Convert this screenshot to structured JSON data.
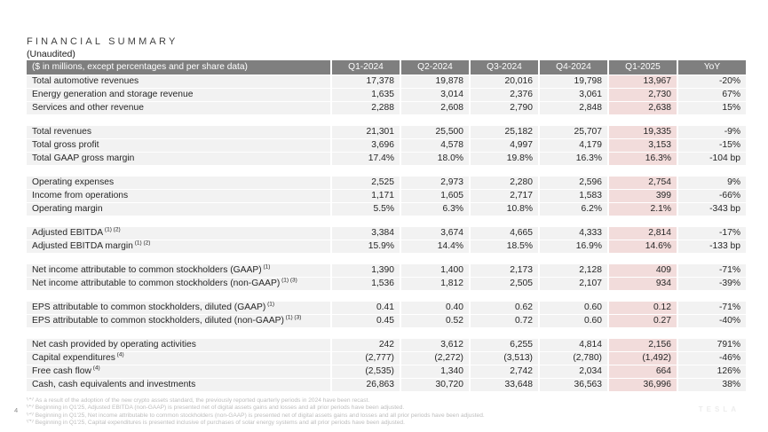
{
  "title": "FINANCIAL SUMMARY",
  "subtitle": "(Unaudited)",
  "page_number": "4",
  "watermark": "TESLA",
  "colors": {
    "header_bg": "#7f7f7f",
    "row_bg": "#f2f2f2",
    "highlight": "#f2dcdb",
    "header_text": "#ffffff",
    "footnote_text": "#bdbdbd"
  },
  "table": {
    "columns": [
      "($ in millions, except percentages and per share data)",
      "Q1-2024",
      "Q2-2024",
      "Q3-2024",
      "Q4-2024",
      "Q1-2025",
      "YoY"
    ],
    "highlight_column": "Q1-2025",
    "groups": [
      [
        {
          "label": "Total automotive revenues",
          "sup": "",
          "values": [
            "17,378",
            "19,878",
            "20,016",
            "19,798",
            "13,967",
            "-20%"
          ]
        },
        {
          "label": "Energy generation and storage revenue",
          "sup": "",
          "values": [
            "1,635",
            "3,014",
            "2,376",
            "3,061",
            "2,730",
            "67%"
          ]
        },
        {
          "label": "Services and other revenue",
          "sup": "",
          "values": [
            "2,288",
            "2,608",
            "2,790",
            "2,848",
            "2,638",
            "15%"
          ]
        }
      ],
      [
        {
          "label": "Total revenues",
          "sup": "",
          "values": [
            "21,301",
            "25,500",
            "25,182",
            "25,707",
            "19,335",
            "-9%"
          ]
        },
        {
          "label": "Total gross profit",
          "sup": "",
          "values": [
            "3,696",
            "4,578",
            "4,997",
            "4,179",
            "3,153",
            "-15%"
          ]
        },
        {
          "label": "Total GAAP gross margin",
          "sup": "",
          "values": [
            "17.4%",
            "18.0%",
            "19.8%",
            "16.3%",
            "16.3%",
            "-104 bp"
          ]
        }
      ],
      [
        {
          "label": "Operating expenses",
          "sup": "",
          "values": [
            "2,525",
            "2,973",
            "2,280",
            "2,596",
            "2,754",
            "9%"
          ]
        },
        {
          "label": "Income from operations",
          "sup": "",
          "values": [
            "1,171",
            "1,605",
            "2,717",
            "1,583",
            "399",
            "-66%"
          ]
        },
        {
          "label": "Operating margin",
          "sup": "",
          "values": [
            "5.5%",
            "6.3%",
            "10.8%",
            "6.2%",
            "2.1%",
            "-343 bp"
          ]
        }
      ],
      [
        {
          "label": "Adjusted EBITDA",
          "sup": "(1) (2)",
          "values": [
            "3,384",
            "3,674",
            "4,665",
            "4,333",
            "2,814",
            "-17%"
          ]
        },
        {
          "label": "Adjusted EBITDA margin",
          "sup": "(1) (2)",
          "values": [
            "15.9%",
            "14.4%",
            "18.5%",
            "16.9%",
            "14.6%",
            "-133 bp"
          ]
        }
      ],
      [
        {
          "label": "Net income attributable to common stockholders (GAAP)",
          "sup": "(1)",
          "values": [
            "1,390",
            "1,400",
            "2,173",
            "2,128",
            "409",
            "-71%"
          ]
        },
        {
          "label": "Net income attributable to common stockholders (non-GAAP)",
          "sup": "(1) (3)",
          "values": [
            "1,536",
            "1,812",
            "2,505",
            "2,107",
            "934",
            "-39%"
          ]
        }
      ],
      [
        {
          "label": "EPS attributable to common stockholders, diluted (GAAP)",
          "sup": "(1)",
          "values": [
            "0.41",
            "0.40",
            "0.62",
            "0.60",
            "0.12",
            "-71%"
          ]
        },
        {
          "label": "EPS attributable to common stockholders, diluted (non-GAAP)",
          "sup": "(1) (3)",
          "values": [
            "0.45",
            "0.52",
            "0.72",
            "0.60",
            "0.27",
            "-40%"
          ]
        }
      ],
      [
        {
          "label": "Net cash provided by operating activities",
          "sup": "",
          "values": [
            "242",
            "3,612",
            "6,255",
            "4,814",
            "2,156",
            "791%"
          ]
        },
        {
          "label": "Capital expenditures",
          "sup": "(4)",
          "values": [
            "(2,777)",
            "(2,272)",
            "(3,513)",
            "(2,780)",
            "(1,492)",
            "-46%"
          ]
        },
        {
          "label": "Free cash flow",
          "sup": "(4)",
          "values": [
            "(2,535)",
            "1,340",
            "2,742",
            "2,034",
            "664",
            "126%"
          ]
        },
        {
          "label": "Cash, cash equivalents and investments",
          "sup": "",
          "values": [
            "26,863",
            "30,720",
            "33,648",
            "36,563",
            "36,996",
            "38%"
          ]
        }
      ]
    ]
  },
  "footnotes": [
    {
      "marker": "(1)",
      "text": "As a result of the adoption of the new crypto assets standard, the previously reported quarterly periods in 2024 have been recast."
    },
    {
      "marker": "(2)",
      "text": "Beginning in Q1'25, Adjusted EBITDA (non-GAAP) is presented net of digital assets gains and losses and all prior periods have been adjusted."
    },
    {
      "marker": "(3)",
      "text": "Beginning in Q1'25, Net income attributable to common stockholders (non-GAAP) is presented net of digital assets gains and losses and all prior periods have been adjusted."
    },
    {
      "marker": "(4)",
      "text": "Beginning in Q1'25, Capital expenditures is presented inclusive of purchases of solar energy systems and all prior periods have been adjusted."
    }
  ]
}
